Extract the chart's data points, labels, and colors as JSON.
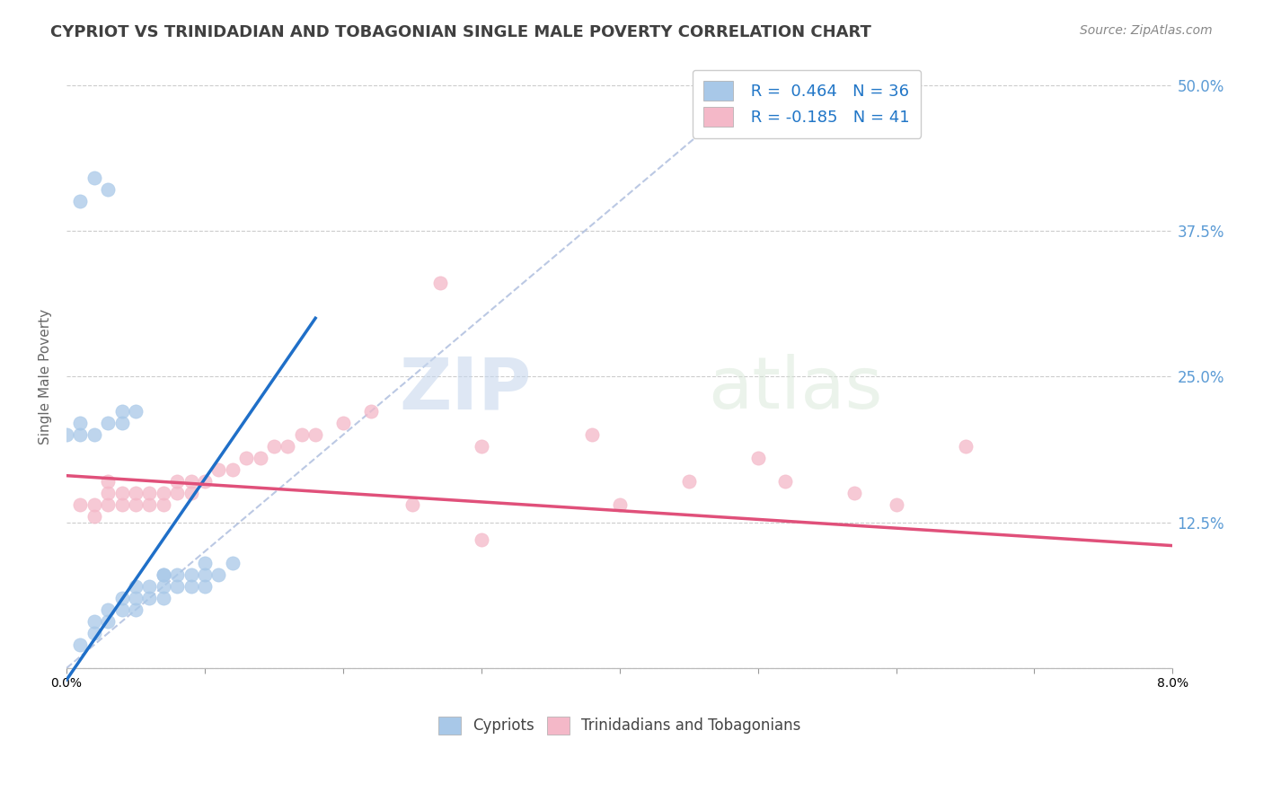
{
  "title": "CYPRIOT VS TRINIDADIAN AND TOBAGONIAN SINGLE MALE POVERTY CORRELATION CHART",
  "source": "Source: ZipAtlas.com",
  "ylabel": "Single Male Poverty",
  "xlim": [
    0.0,
    0.08
  ],
  "ylim": [
    -0.02,
    0.52
  ],
  "plot_ylim": [
    0.0,
    0.5
  ],
  "xtick_positions": [
    0.0,
    0.01,
    0.02,
    0.03,
    0.04,
    0.05,
    0.06,
    0.07,
    0.08
  ],
  "ytick_vals": [
    0.0,
    0.125,
    0.25,
    0.375,
    0.5
  ],
  "ytick_labels": [
    "",
    "12.5%",
    "25.0%",
    "37.5%",
    "50.0%"
  ],
  "legend_r1": "R =  0.464",
  "legend_n1": "N = 36",
  "legend_r2": "R = -0.185",
  "legend_n2": "N = 41",
  "blue_color": "#a8c8e8",
  "pink_color": "#f4b8c8",
  "blue_scatter": [
    [
      0.001,
      0.02
    ],
    [
      0.002,
      0.03
    ],
    [
      0.002,
      0.04
    ],
    [
      0.003,
      0.04
    ],
    [
      0.003,
      0.05
    ],
    [
      0.004,
      0.05
    ],
    [
      0.004,
      0.06
    ],
    [
      0.005,
      0.05
    ],
    [
      0.005,
      0.06
    ],
    [
      0.005,
      0.07
    ],
    [
      0.006,
      0.06
    ],
    [
      0.006,
      0.07
    ],
    [
      0.007,
      0.06
    ],
    [
      0.007,
      0.07
    ],
    [
      0.007,
      0.08
    ],
    [
      0.008,
      0.07
    ],
    [
      0.008,
      0.08
    ],
    [
      0.009,
      0.07
    ],
    [
      0.009,
      0.08
    ],
    [
      0.01,
      0.07
    ],
    [
      0.01,
      0.08
    ],
    [
      0.01,
      0.09
    ],
    [
      0.011,
      0.08
    ],
    [
      0.012,
      0.09
    ],
    [
      0.0,
      0.2
    ],
    [
      0.001,
      0.2
    ],
    [
      0.001,
      0.21
    ],
    [
      0.002,
      0.2
    ],
    [
      0.003,
      0.21
    ],
    [
      0.004,
      0.21
    ],
    [
      0.004,
      0.22
    ],
    [
      0.005,
      0.22
    ],
    [
      0.001,
      0.4
    ],
    [
      0.002,
      0.42
    ],
    [
      0.003,
      0.41
    ],
    [
      0.007,
      0.08
    ]
  ],
  "pink_scatter": [
    [
      0.001,
      0.14
    ],
    [
      0.002,
      0.13
    ],
    [
      0.002,
      0.14
    ],
    [
      0.003,
      0.14
    ],
    [
      0.003,
      0.15
    ],
    [
      0.003,
      0.16
    ],
    [
      0.004,
      0.14
    ],
    [
      0.004,
      0.15
    ],
    [
      0.005,
      0.14
    ],
    [
      0.005,
      0.15
    ],
    [
      0.006,
      0.14
    ],
    [
      0.006,
      0.15
    ],
    [
      0.007,
      0.14
    ],
    [
      0.007,
      0.15
    ],
    [
      0.008,
      0.15
    ],
    [
      0.008,
      0.16
    ],
    [
      0.009,
      0.15
    ],
    [
      0.009,
      0.16
    ],
    [
      0.01,
      0.16
    ],
    [
      0.011,
      0.17
    ],
    [
      0.012,
      0.17
    ],
    [
      0.013,
      0.18
    ],
    [
      0.014,
      0.18
    ],
    [
      0.015,
      0.19
    ],
    [
      0.016,
      0.19
    ],
    [
      0.017,
      0.2
    ],
    [
      0.018,
      0.2
    ],
    [
      0.02,
      0.21
    ],
    [
      0.022,
      0.22
    ],
    [
      0.025,
      0.14
    ],
    [
      0.027,
      0.33
    ],
    [
      0.03,
      0.19
    ],
    [
      0.038,
      0.2
    ],
    [
      0.04,
      0.14
    ],
    [
      0.045,
      0.16
    ],
    [
      0.05,
      0.18
    ],
    [
      0.052,
      0.16
    ],
    [
      0.057,
      0.15
    ],
    [
      0.06,
      0.14
    ],
    [
      0.065,
      0.19
    ],
    [
      0.03,
      0.11
    ]
  ],
  "blue_line_x": [
    0.0,
    0.018
  ],
  "blue_line_y": [
    -0.01,
    0.3
  ],
  "pink_line_x": [
    0.0,
    0.08
  ],
  "pink_line_y": [
    0.165,
    0.105
  ],
  "ref_line_x": [
    0.0,
    0.05
  ],
  "ref_line_y": [
    0.0,
    0.5
  ],
  "watermark_zip": "ZIP",
  "watermark_atlas": "atlas",
  "background_color": "#ffffff",
  "grid_color": "#cccccc",
  "title_color": "#404040",
  "tick_label_color": "#5b9bd5"
}
